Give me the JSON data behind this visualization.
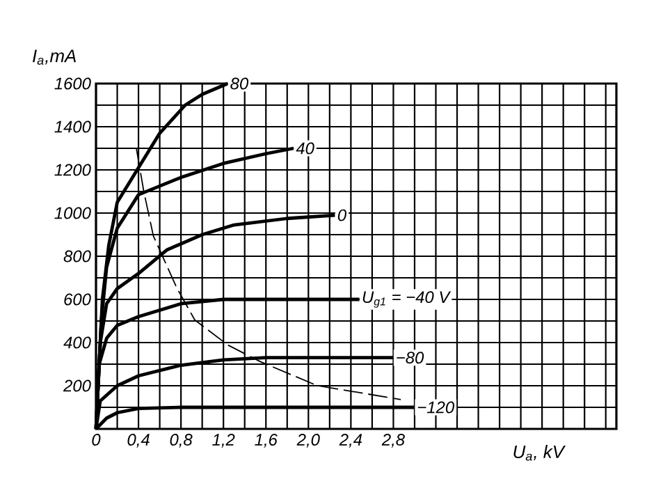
{
  "chart_data": {
    "type": "line",
    "xlabel": "U$_{a}$, kV",
    "ylabel": "I$_{a}$,mA",
    "xlim": [
      0,
      4.9
    ],
    "ylim": [
      0,
      1600
    ],
    "xticks": [
      0,
      {
        "value": 0.2,
        "label": null
      },
      {
        "value": 0.4,
        "label": "0,4"
      },
      {
        "value": 0.6,
        "label": null
      },
      {
        "value": 0.8,
        "label": "0,8"
      },
      {
        "value": 1.0,
        "label": null
      },
      {
        "value": 1.2,
        "label": "1,2"
      },
      {
        "value": 1.4,
        "label": null
      },
      {
        "value": 1.6,
        "label": "1,6"
      },
      {
        "value": 1.8,
        "label": null
      },
      {
        "value": 2.0,
        "label": "2,0"
      },
      {
        "value": 2.2,
        "label": null
      },
      {
        "value": 2.4,
        "label": "2,4"
      },
      {
        "value": 2.6,
        "label": null
      },
      {
        "value": 2.8,
        "label": "2,8"
      },
      {
        "value": 3.0,
        "label": null
      },
      {
        "value": 3.2,
        "label": null
      },
      {
        "value": 3.4,
        "label": null
      },
      {
        "value": 3.6,
        "label": null
      },
      {
        "value": 3.8,
        "label": null
      },
      {
        "value": 4.0,
        "label": null
      },
      {
        "value": 4.2,
        "label": null
      },
      {
        "value": 4.4,
        "label": null
      },
      {
        "value": 4.6,
        "label": null
      },
      {
        "value": 4.8,
        "label": null
      }
    ],
    "yticks": [
      {
        "value": 0,
        "label": null
      },
      {
        "value": 100,
        "label": null
      },
      200,
      {
        "value": 300,
        "label": null
      },
      400,
      {
        "value": 500,
        "label": null
      },
      600,
      {
        "value": 700,
        "label": null
      },
      800,
      {
        "value": 900,
        "label": null
      },
      1000,
      {
        "value": 1100,
        "label": null
      },
      1200,
      {
        "value": 1300,
        "label": null
      },
      1400,
      {
        "value": 1500,
        "label": null
      },
      1600
    ],
    "grid": true,
    "legend": false,
    "marker": "none",
    "series": [
      {
        "name": "80",
        "color": "#000000",
        "line_style": "solid",
        "x": [
          0,
          0.06,
          0.12,
          0.2,
          0.4,
          0.6,
          0.84,
          1.0,
          1.24
        ],
        "values": [
          0,
          600,
          850,
          1050,
          1210,
          1370,
          1500,
          1550,
          1600
        ]
      },
      {
        "name": "40",
        "color": "#000000",
        "line_style": "solid",
        "x": [
          0,
          0.05,
          0.1,
          0.2,
          0.4,
          0.8,
          1.2,
          1.6,
          1.86
        ],
        "values": [
          0,
          500,
          750,
          930,
          1085,
          1165,
          1230,
          1275,
          1300
        ]
      },
      {
        "name": "0",
        "color": "#000000",
        "line_style": "solid",
        "x": [
          0,
          0.04,
          0.1,
          0.2,
          0.4,
          0.67,
          1.0,
          1.3,
          1.8,
          2.25
        ],
        "values": [
          0,
          400,
          580,
          650,
          720,
          830,
          900,
          945,
          975,
          990
        ]
      },
      {
        "name": "U$_{g1}$ = −40 V",
        "color": "#000000",
        "line_style": "solid",
        "x": [
          0,
          0.03,
          0.1,
          0.2,
          0.4,
          0.8,
          1.2,
          2.48
        ],
        "values": [
          0,
          300,
          420,
          480,
          520,
          580,
          600,
          600
        ]
      },
      {
        "name": "−80",
        "color": "#000000",
        "line_style": "solid",
        "x": [
          0,
          0.04,
          0.2,
          0.4,
          0.8,
          1.2,
          1.6,
          2.8
        ],
        "values": [
          0,
          130,
          200,
          246,
          295,
          320,
          330,
          330
        ]
      },
      {
        "name": "−120",
        "color": "#000000",
        "line_style": "solid",
        "x": [
          0,
          0.1,
          0.2,
          0.4,
          0.8,
          3.0
        ],
        "values": [
          0,
          50,
          75,
          95,
          100,
          100
        ]
      },
      {
        "color": "#000000",
        "line_style": "dashed",
        "x": [
          0.38,
          0.45,
          0.54,
          0.76,
          0.93,
          1.24,
          1.55,
          2.08,
          2.87
        ],
        "values": [
          1300,
          1100,
          894,
          654,
          505,
          389,
          311,
          201,
          136
        ]
      }
    ]
  }
}
